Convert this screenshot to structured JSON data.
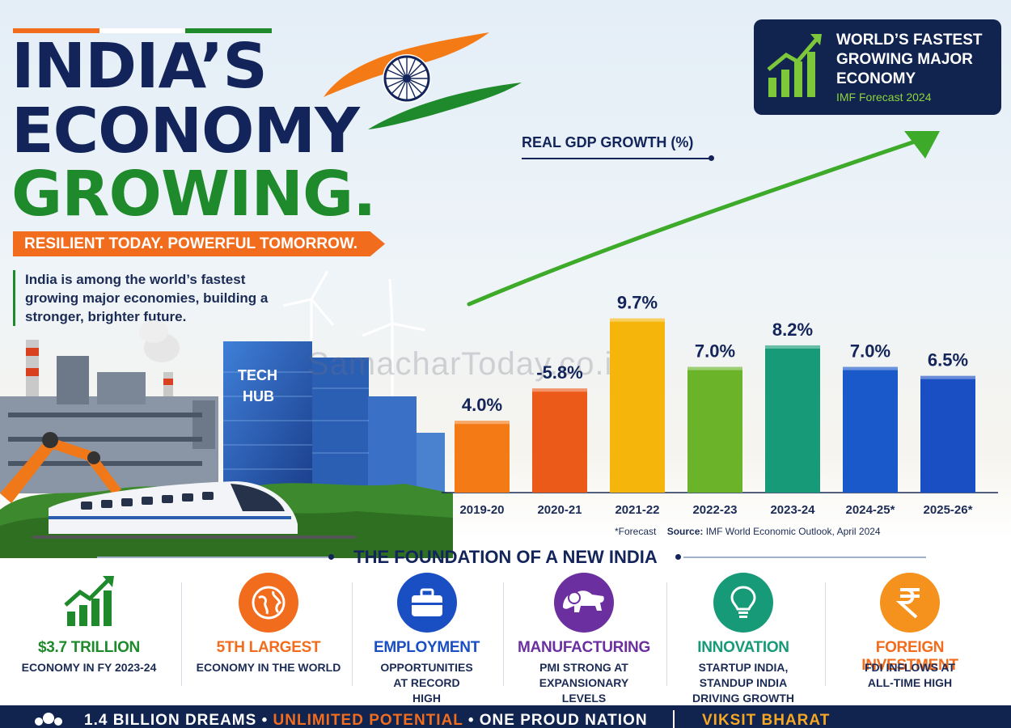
{
  "headline": {
    "line1": "INDIA’S",
    "line2": "ECONOMY",
    "line3": "GROWING.",
    "tagline": "RESILIENT TODAY.  POWERFUL TOMORROW.",
    "intro": "India is among the world’s fastest growing major economies, building a stronger, brighter future."
  },
  "badge": {
    "title": "WORLD’S FASTEST GROWING MAJOR ECONOMY",
    "subtitle": "IMF Forecast 2024"
  },
  "scene": {
    "tech_hub_label_1": "TECH",
    "tech_hub_label_2": "HUB"
  },
  "watermark": "SamacharToday.co.in",
  "colors": {
    "navy": "#12245a",
    "saffron": "#f26c1d",
    "green": "#1e8a2c"
  },
  "chart_data": {
    "type": "bar",
    "title": "REAL GDP GROWTH (%)",
    "categories": [
      "2019-20",
      "2020-21",
      "2021-22",
      "2022-23",
      "2023-24",
      "2024-25*",
      "2025-26*"
    ],
    "values": [
      4.0,
      -5.8,
      9.7,
      7.0,
      8.2,
      7.0,
      6.5
    ],
    "value_labels": [
      "4.0%",
      "-5.8%",
      "9.7%",
      "7.0%",
      "8.2%",
      "7.0%",
      "6.5%"
    ],
    "bar_colors": [
      "#f47a16",
      "#ec5a1a",
      "#f5b50a",
      "#6bb42a",
      "#169a78",
      "#1a59c9",
      "#1a4fc4"
    ],
    "footnote": "*Forecast",
    "source_label": "Source:",
    "source": "IMF World Economic Outlook, April 2024"
  },
  "foundation": {
    "title": "THE FOUNDATION OF A NEW INDIA",
    "cards": [
      {
        "icon": "growth-chart-icon",
        "title": "$3.7 TRILLION",
        "desc": "ECONOMY IN FY 2023-24",
        "color": "#1e8a2c"
      },
      {
        "icon": "globe-icon",
        "title": "5TH LARGEST",
        "desc": "ECONOMY IN THE WORLD",
        "color": "#f26c1d"
      },
      {
        "icon": "briefcase-icon",
        "title": "EMPLOYMENT",
        "desc": "OPPORTUNITIES AT RECORD HIGH",
        "color": "#1a4fc4"
      },
      {
        "icon": "lion-icon",
        "title": "MANUFACTURING",
        "desc": "PMI STRONG AT EXPANSIONARY LEVELS",
        "color": "#6b2fa0"
      },
      {
        "icon": "lightbulb-icon",
        "title": "INNOVATION",
        "desc": "STARTUP INDIA, STANDUP INDIA DRIVING GROWTH",
        "color": "#169a78"
      },
      {
        "icon": "rupee-icon",
        "title": "FOREIGN INVESTMENT",
        "desc": "FDI INFLOWS AT ALL-TIME HIGH",
        "color": "#f26c1d"
      }
    ]
  },
  "footer": {
    "part1": "1.4 BILLION DREAMS • ",
    "part2": "UNLIMITED POTENTIAL",
    "part3": " • ONE PROUD NATION",
    "right": "VIKSIT BHARAT"
  }
}
